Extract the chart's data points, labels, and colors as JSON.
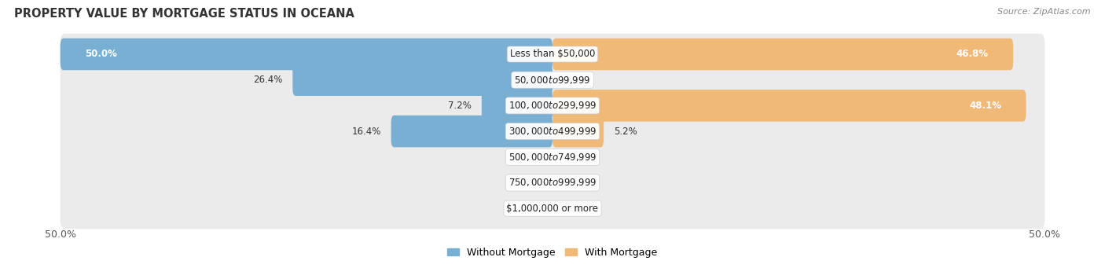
{
  "title": "PROPERTY VALUE BY MORTGAGE STATUS IN OCEANA",
  "source": "Source: ZipAtlas.com",
  "categories": [
    "Less than $50,000",
    "$50,000 to $99,999",
    "$100,000 to $299,999",
    "$300,000 to $499,999",
    "$500,000 to $749,999",
    "$750,000 to $999,999",
    "$1,000,000 or more"
  ],
  "without_mortgage": [
    50.0,
    26.4,
    7.2,
    16.4,
    0.0,
    0.0,
    0.0
  ],
  "with_mortgage": [
    46.8,
    0.0,
    48.1,
    5.2,
    0.0,
    0.0,
    0.0
  ],
  "color_without": "#7aafd4",
  "color_with": "#f0b978",
  "color_with_light": "#f5d4a8",
  "color_without_light": "#b8d4ea",
  "xlim_left": -50,
  "xlim_right": 50,
  "bar_height": 0.62,
  "row_bg_color": "#ebebeb",
  "fig_bg_color": "#ffffff",
  "title_fontsize": 10.5,
  "source_fontsize": 8,
  "label_fontsize": 8.5,
  "category_fontsize": 8.5,
  "legend_fontsize": 9
}
